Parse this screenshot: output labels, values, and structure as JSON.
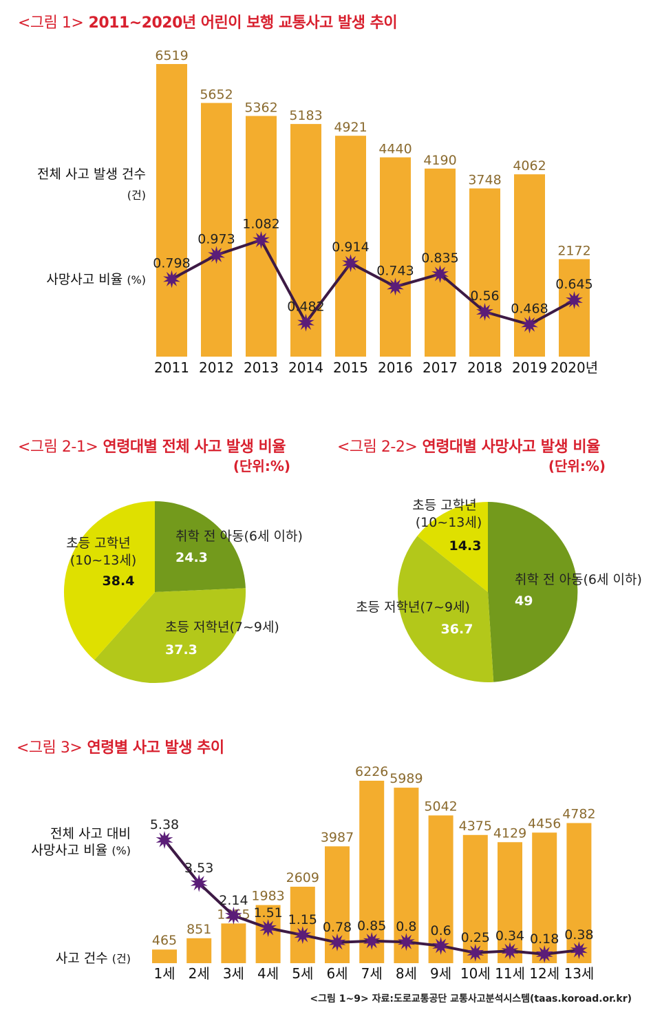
{
  "colors": {
    "bar": "#f3ad2e",
    "line": "#3d1a45",
    "marker": "#5b1d78",
    "pie_dark_green": "#739a1c",
    "pie_lime": "#b3c81a",
    "pie_yellow": "#dfe000",
    "title_red": "#d8202e"
  },
  "fig1": {
    "title_prefix": "<그림 1>",
    "title": "2011~2020년 어린이 보행 교통사고 발생 추이",
    "label_total": "전체 사고 발생 건수",
    "label_total_unit": "(건)",
    "label_rate": "사망사고 비율",
    "label_rate_unit": "(%)"
  },
  "fig21": {
    "title_prefix": "<그림 2-1>",
    "title": "연령대별 전체 사고 발생 비율",
    "unit": "(단위:%)"
  },
  "fig22": {
    "title_prefix": "<그림 2-2>",
    "title": "연령대별 사망사고 발생 비율",
    "unit": "(단위:%)"
  },
  "fig3": {
    "title_prefix": "<그림 3>",
    "title": "연령별 사고 발생 추이",
    "label_rate_1": "전체 사고 대비",
    "label_rate_2": "사망사고 비율",
    "label_rate_unit": "(%)",
    "label_count": "사고 건수",
    "label_count_unit": "(건)"
  },
  "source": "<그림 1~9> 자료:도로교통공단 교통사고분석시스템(taas.koroad.or.kr)",
  "chart_data": [
    {
      "type": "bar",
      "title": "2011~2020년 어린이 보행 교통사고 발생 추이",
      "categories": [
        "2011",
        "2012",
        "2013",
        "2014",
        "2015",
        "2016",
        "2017",
        "2018",
        "2019",
        "2020년"
      ],
      "series": [
        {
          "name": "전체 사고 발생 건수",
          "type": "bar",
          "unit": "건",
          "values": [
            6519,
            5652,
            5362,
            5183,
            4921,
            4440,
            4190,
            3748,
            4062,
            2172
          ]
        },
        {
          "name": "사망사고 비율",
          "type": "line",
          "unit": "%",
          "values": [
            0.798,
            0.973,
            1.082,
            0.482,
            0.914,
            0.743,
            0.835,
            0.56,
            0.468,
            0.645
          ],
          "labels": [
            "0.798",
            "0.973",
            "1.082",
            "0.482",
            "0.914",
            "0.743",
            "0.835",
            "0.56",
            "0.468",
            "0.645"
          ]
        }
      ],
      "ylim_bar": [
        0,
        6519
      ],
      "ylim_line": [
        0.3,
        1.3
      ]
    },
    {
      "type": "pie",
      "title": "연령대별 전체 사고 발생 비율",
      "unit": "%",
      "slices": [
        {
          "label": "취학 전 아동(6세 이하)",
          "value": 24.3,
          "color": "#739a1c"
        },
        {
          "label": "초등 저학년(7~9세)",
          "value": 37.3,
          "color": "#b3c81a"
        },
        {
          "label_line1": "초등 고학년",
          "label_line2": "(10~13세)",
          "value": 38.4,
          "color": "#dfe000"
        }
      ]
    },
    {
      "type": "pie",
      "title": "연령대별 사망사고 발생 비율",
      "unit": "%",
      "slices": [
        {
          "label": "취학 전 아동(6세 이하)",
          "value": 49,
          "color": "#739a1c"
        },
        {
          "label": "초등 저학년(7~9세)",
          "value": 36.7,
          "color": "#b3c81a"
        },
        {
          "label_line1": "초등 고학년",
          "label_line2": "(10~13세)",
          "value": 14.3,
          "color": "#dfe000"
        }
      ]
    },
    {
      "type": "bar",
      "title": "연령별 사고 발생 추이",
      "categories": [
        "1세",
        "2세",
        "3세",
        "4세",
        "5세",
        "6세",
        "7세",
        "8세",
        "9세",
        "10세",
        "11세",
        "12세",
        "13세"
      ],
      "series": [
        {
          "name": "사고 건수",
          "type": "bar",
          "unit": "건",
          "values": [
            465,
            851,
            1355,
            1983,
            2609,
            3987,
            6226,
            5989,
            5042,
            4375,
            4129,
            4456,
            4782
          ]
        },
        {
          "name": "전체 사고 대비 사망사고 비율",
          "type": "line",
          "unit": "%",
          "values": [
            5.38,
            3.53,
            2.14,
            1.51,
            1.15,
            0.78,
            0.85,
            0.8,
            0.6,
            0.25,
            0.34,
            0.18,
            0.38
          ]
        }
      ],
      "ylim_bar": [
        0,
        6226
      ],
      "ylim_line": [
        0,
        5.38
      ]
    }
  ]
}
